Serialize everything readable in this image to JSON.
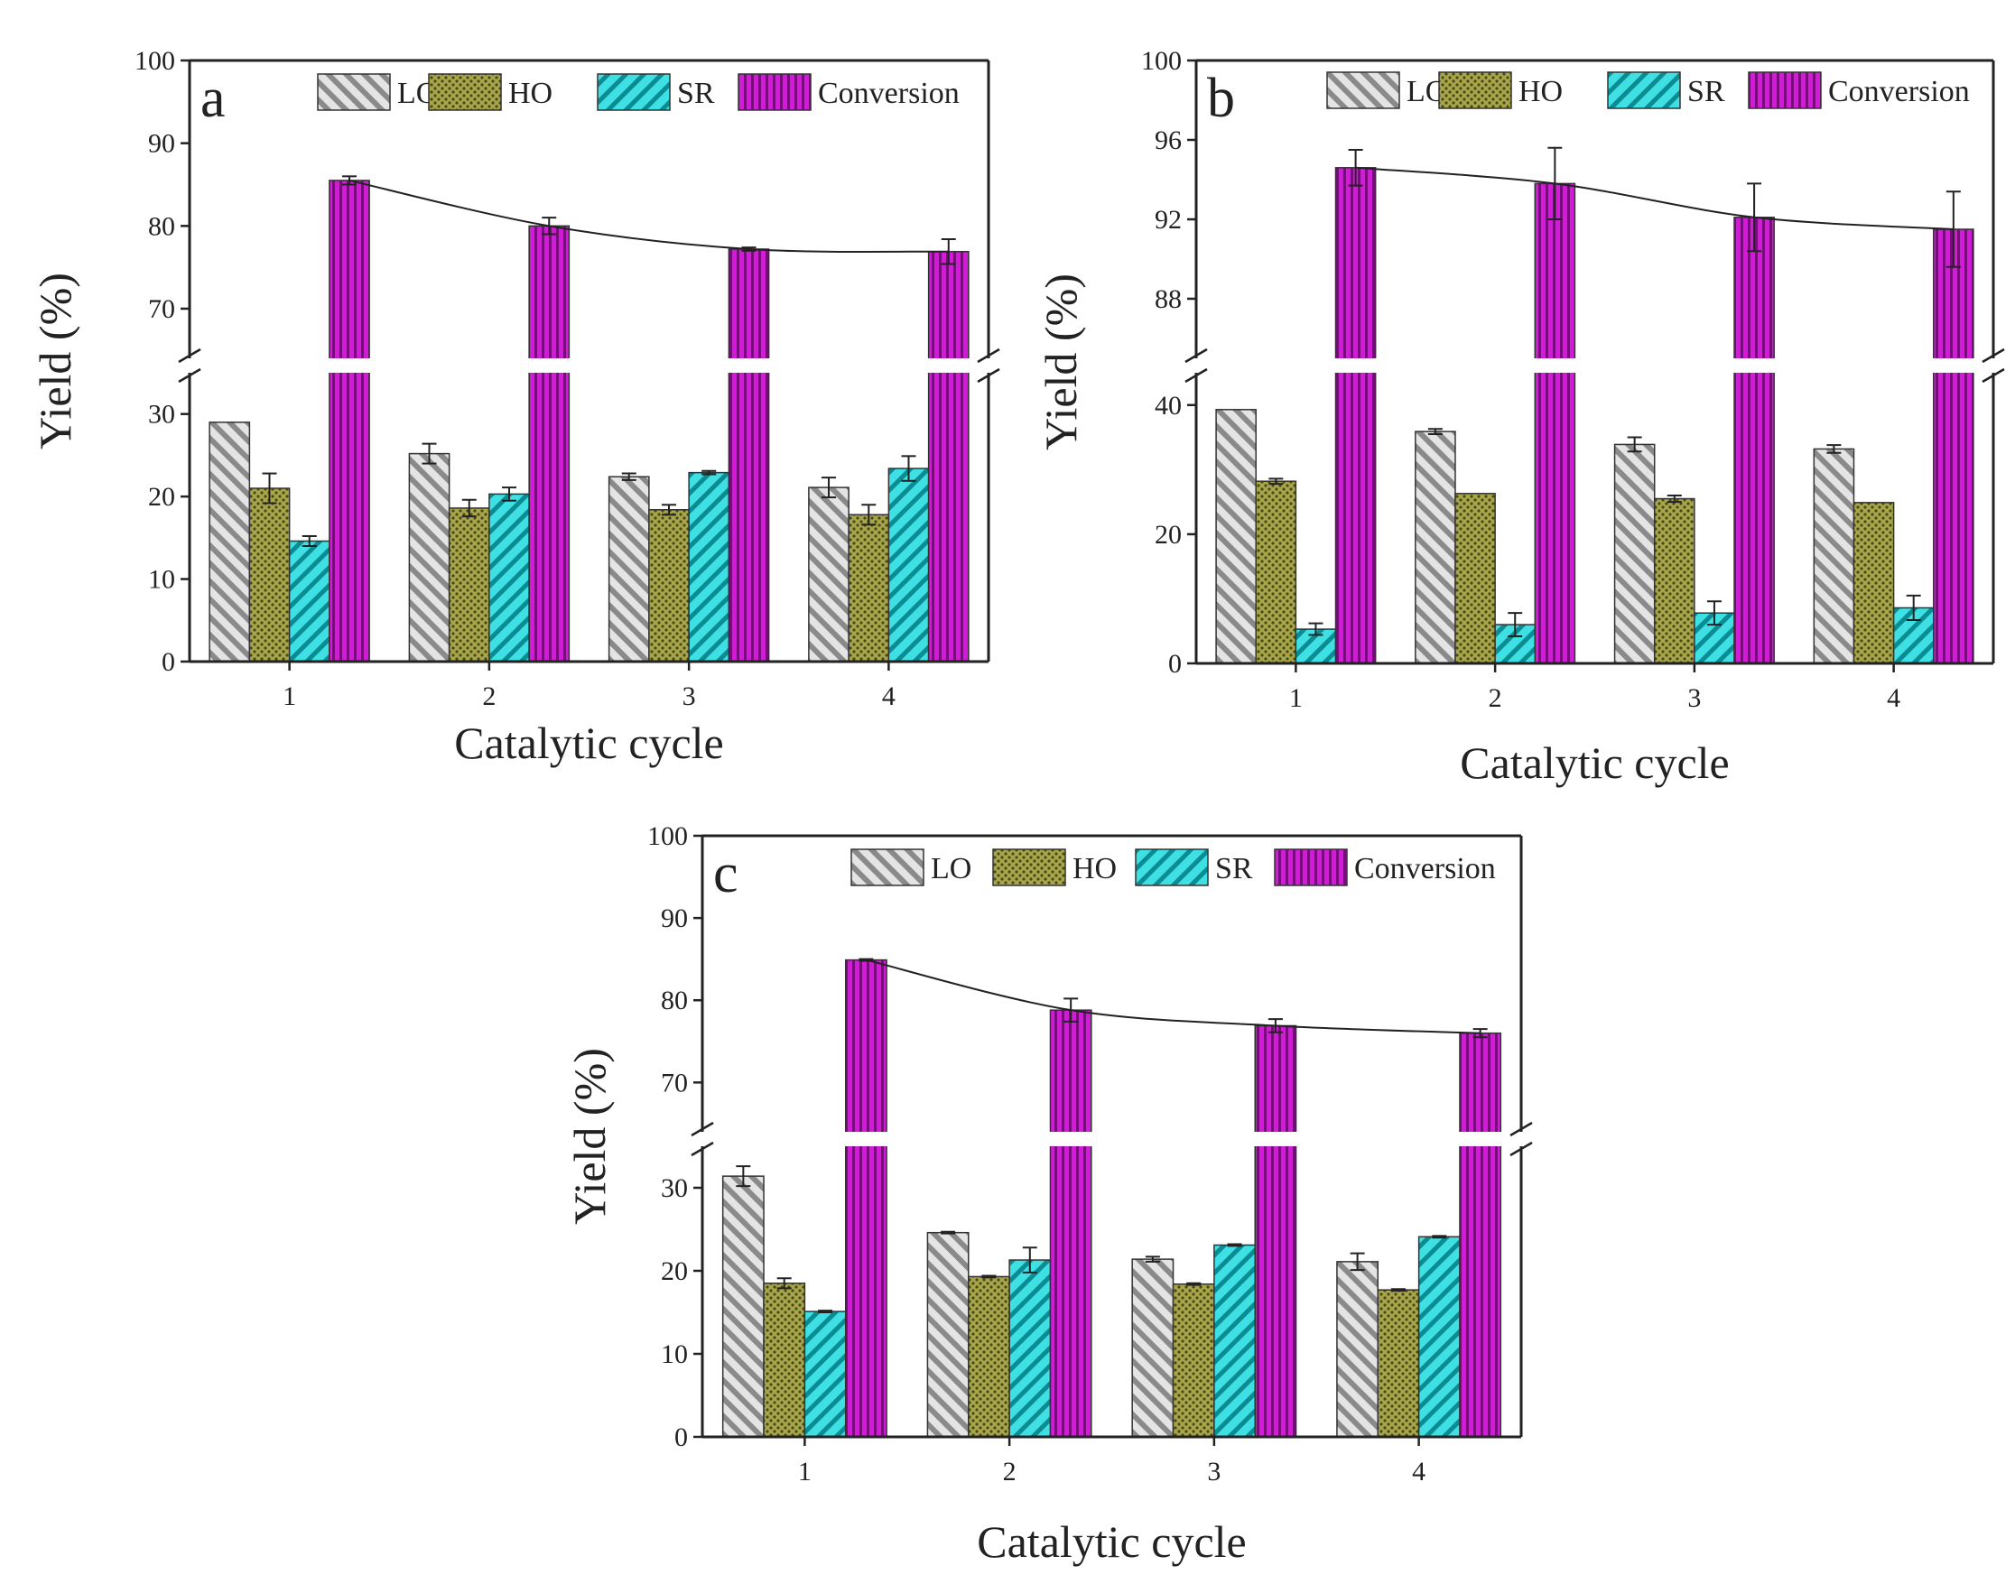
{
  "figure": {
    "description_labels": [
      "a",
      "b",
      "c"
    ]
  },
  "chart_data": [
    {
      "panel_label": "a",
      "type": "bar",
      "xlabel": "Catalytic cycle",
      "ylabel": "Yield (%)",
      "categories": [
        "1",
        "2",
        "3",
        "4"
      ],
      "lower_axis": {
        "ylim": [
          0,
          35
        ],
        "ticks": [
          "0",
          "10",
          "20",
          "30"
        ]
      },
      "upper_axis": {
        "ylim": [
          64,
          100
        ],
        "ticks": [
          "70",
          "80",
          "90",
          "100"
        ]
      },
      "legend": [
        "LO",
        "HO",
        "SR",
        "Conversion"
      ],
      "series": [
        {
          "name": "LO",
          "values": [
            29.0,
            25.2,
            22.4,
            21.1
          ],
          "errors": [
            0.0,
            1.2,
            0.4,
            1.2
          ],
          "color": "#d8d8d8"
        },
        {
          "name": "HO",
          "values": [
            21.0,
            18.6,
            18.4,
            17.8
          ],
          "errors": [
            1.8,
            1.0,
            0.6,
            1.2
          ],
          "color": "#8c8a3a"
        },
        {
          "name": "SR",
          "values": [
            14.6,
            20.3,
            22.9,
            23.4
          ],
          "errors": [
            0.6,
            0.8,
            0.2,
            1.5
          ],
          "color": "#29d1d6"
        },
        {
          "name": "Conversion",
          "values": [
            85.5,
            80.0,
            77.2,
            76.9
          ],
          "errors": [
            0.5,
            1.0,
            0.2,
            1.5
          ],
          "color": "#c010c8"
        }
      ]
    },
    {
      "panel_label": "b",
      "type": "bar",
      "xlabel": "Catalytic cycle",
      "ylabel": "Yield (%)",
      "categories": [
        "1",
        "2",
        "3",
        "4"
      ],
      "lower_axis": {
        "ylim": [
          0,
          45
        ],
        "ticks": [
          "0",
          "20",
          "40"
        ]
      },
      "upper_axis": {
        "ylim": [
          85,
          100
        ],
        "ticks": [
          "88",
          "92",
          "96",
          "100"
        ]
      },
      "legend": [
        "LO",
        "HO",
        "SR",
        "Conversion"
      ],
      "series": [
        {
          "name": "LO",
          "values": [
            39.3,
            35.9,
            33.9,
            33.2
          ],
          "errors": [
            0.0,
            0.4,
            1.1,
            0.6
          ],
          "color": "#d8d8d8"
        },
        {
          "name": "HO",
          "values": [
            28.2,
            26.3,
            25.5,
            24.9
          ],
          "errors": [
            0.4,
            0.0,
            0.5,
            0.0
          ],
          "color": "#8c8a3a"
        },
        {
          "name": "SR",
          "values": [
            5.3,
            6.0,
            7.8,
            8.6
          ],
          "errors": [
            0.9,
            1.8,
            1.8,
            1.9
          ],
          "color": "#29d1d6"
        },
        {
          "name": "Conversion",
          "values": [
            94.6,
            93.8,
            92.1,
            91.5
          ],
          "errors": [
            0.9,
            1.8,
            1.7,
            1.9
          ],
          "color": "#c010c8"
        }
      ]
    },
    {
      "panel_label": "c",
      "type": "bar",
      "xlabel": "Catalytic cycle",
      "ylabel": "Yield (%)",
      "categories": [
        "1",
        "2",
        "3",
        "4"
      ],
      "lower_axis": {
        "ylim": [
          0,
          35
        ],
        "ticks": [
          "0",
          "10",
          "20",
          "30"
        ]
      },
      "upper_axis": {
        "ylim": [
          64,
          100
        ],
        "ticks": [
          "70",
          "80",
          "90",
          "100"
        ]
      },
      "legend": [
        "LO",
        "HO",
        "SR",
        "Conversion"
      ],
      "series": [
        {
          "name": "LO",
          "values": [
            31.4,
            24.6,
            21.4,
            21.1
          ],
          "errors": [
            1.2,
            0.1,
            0.3,
            1.0
          ],
          "color": "#d8d8d8"
        },
        {
          "name": "HO",
          "values": [
            18.5,
            19.3,
            18.4,
            17.7
          ],
          "errors": [
            0.6,
            0.1,
            0.1,
            0.1
          ],
          "color": "#8c8a3a"
        },
        {
          "name": "SR",
          "values": [
            15.1,
            21.3,
            23.1,
            24.1
          ],
          "errors": [
            0.1,
            1.5,
            0.1,
            0.1
          ],
          "color": "#29d1d6"
        },
        {
          "name": "Conversion",
          "values": [
            84.9,
            78.8,
            76.9,
            76.0
          ],
          "errors": [
            0.1,
            1.4,
            0.8,
            0.5
          ],
          "color": "#c010c8"
        }
      ]
    }
  ]
}
